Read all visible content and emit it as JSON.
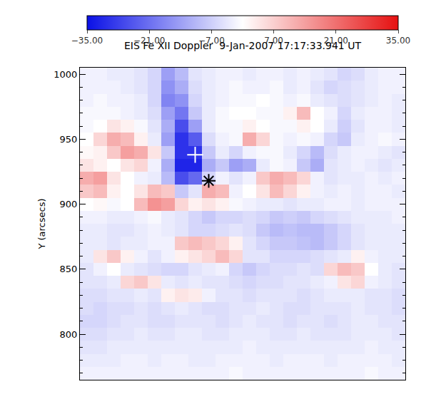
{
  "chart_data": {
    "type": "heatmap",
    "title": "EIS Fe XII Doppler  9-Jan-2007 17:17:33.941 UT",
    "y_label": "Y (arcsecs)",
    "ylim": [
      765,
      1005
    ],
    "yticks": [
      800,
      850,
      900,
      950,
      1000
    ],
    "tick_labels": "y",
    "colorbar": {
      "range": [
        -35,
        35
      ],
      "ticks": [
        {
          "value": -35,
          "label": "−35.00"
        },
        {
          "value": -21,
          "label": "−21.00"
        },
        {
          "value": -7,
          "label": "−7.00"
        },
        {
          "value": 7,
          "label": "7.00"
        },
        {
          "value": 21,
          "label": "21.00"
        },
        {
          "value": 35,
          "label": "35.00"
        }
      ]
    },
    "y": [
      1000,
      990,
      980,
      970,
      960,
      950,
      940,
      930,
      920,
      910,
      900,
      890,
      880,
      870,
      860,
      850,
      840,
      830,
      820,
      810,
      800,
      790,
      780,
      770
    ],
    "cells": [
      [
        -2,
        -2,
        -3,
        -3,
        -4,
        -6,
        -14,
        -10,
        -4,
        -3,
        -2,
        -2,
        -3,
        -2,
        -2,
        -3,
        -2,
        -3,
        -4,
        -6,
        -5,
        -3,
        -2,
        -2
      ],
      [
        -2,
        -2,
        -2,
        -3,
        -4,
        -6,
        -16,
        -12,
        -5,
        -3,
        -2,
        -1,
        -2,
        -2,
        -1,
        -3,
        -2,
        -4,
        -6,
        -5,
        -4,
        -3,
        -2,
        -2
      ],
      [
        -2,
        -1,
        -2,
        -2,
        -3,
        -6,
        -18,
        -16,
        -6,
        -3,
        -2,
        -1,
        -1,
        0,
        -1,
        -2,
        -1,
        -3,
        -4,
        -5,
        -4,
        -3,
        -2,
        -3
      ],
      [
        -1,
        -1,
        -1,
        -2,
        -3,
        -5,
        -14,
        -20,
        -8,
        -3,
        -1,
        0,
        0,
        -1,
        -1,
        2,
        10,
        0,
        -2,
        -6,
        -3,
        -2,
        -2,
        -3
      ],
      [
        -1,
        0,
        4,
        2,
        -1,
        -4,
        -12,
        -26,
        -14,
        -3,
        -1,
        -1,
        2,
        0,
        -1,
        -1,
        2,
        0,
        -3,
        -7,
        -4,
        -2,
        -2,
        -3
      ],
      [
        0,
        6,
        12,
        10,
        2,
        -3,
        -14,
        -30,
        -24,
        -5,
        -2,
        -1,
        12,
        6,
        -1,
        -2,
        -1,
        -2,
        -6,
        -8,
        -3,
        -2,
        -1,
        -2
      ],
      [
        1,
        2,
        8,
        14,
        12,
        4,
        -8,
        -30,
        -30,
        -8,
        -3,
        -6,
        -2,
        -1,
        -1,
        -3,
        -6,
        -10,
        -5,
        -3,
        -2,
        -2,
        -3,
        -4
      ],
      [
        4,
        2,
        0,
        4,
        6,
        -2,
        -12,
        -32,
        -32,
        -12,
        -8,
        -14,
        -12,
        -3,
        -1,
        -2,
        -8,
        -12,
        -4,
        -3,
        -2,
        -3,
        -4,
        -3
      ],
      [
        12,
        14,
        4,
        0,
        -2,
        -3,
        -10,
        -26,
        -22,
        -6,
        -2,
        -4,
        -2,
        8,
        12,
        10,
        6,
        -2,
        -4,
        -3,
        -3,
        -2,
        -3,
        -2
      ],
      [
        8,
        10,
        2,
        0,
        4,
        10,
        8,
        -8,
        -4,
        12,
        10,
        -2,
        0,
        4,
        10,
        6,
        2,
        -2,
        -3,
        -2,
        -3,
        -2,
        -2,
        -3
      ],
      [
        0,
        1,
        -1,
        0,
        10,
        16,
        14,
        6,
        2,
        4,
        2,
        -1,
        -2,
        -3,
        -3,
        -4,
        -3,
        -3,
        -2,
        -2,
        -3,
        -2,
        -2,
        -2
      ],
      [
        -2,
        -2,
        -3,
        -3,
        -2,
        -1,
        -3,
        -4,
        -6,
        -8,
        -6,
        -6,
        -5,
        -6,
        -8,
        -7,
        -8,
        -6,
        -5,
        -4,
        -3,
        -3,
        -3,
        -2
      ],
      [
        -3,
        -3,
        -4,
        -4,
        -3,
        -2,
        -3,
        -4,
        -6,
        -6,
        -5,
        -4,
        -5,
        -8,
        -10,
        -9,
        -10,
        -10,
        -8,
        -6,
        -4,
        -3,
        -3,
        -3
      ],
      [
        -3,
        -3,
        -4,
        -3,
        -3,
        -2,
        -2,
        8,
        10,
        8,
        6,
        2,
        -4,
        -6,
        -8,
        -8,
        -9,
        -10,
        -8,
        -6,
        -4,
        -3,
        -3,
        -3
      ],
      [
        -3,
        4,
        8,
        2,
        -2,
        -4,
        -2,
        2,
        4,
        6,
        10,
        6,
        -4,
        -4,
        -6,
        -6,
        -6,
        -5,
        -4,
        -3,
        2,
        -2,
        -3,
        -3
      ],
      [
        -4,
        -2,
        0,
        -3,
        -4,
        -5,
        -6,
        -6,
        -4,
        -3,
        -2,
        -6,
        -8,
        -6,
        -5,
        -5,
        -4,
        -5,
        6,
        10,
        8,
        0,
        -3,
        -4
      ],
      [
        -4,
        -4,
        -3,
        6,
        8,
        4,
        -3,
        -4,
        -3,
        -4,
        -4,
        -5,
        -6,
        -5,
        -5,
        -4,
        -4,
        -3,
        -2,
        4,
        6,
        -2,
        -3,
        -4
      ],
      [
        -5,
        -5,
        -4,
        -4,
        -3,
        -4,
        2,
        4,
        3,
        -2,
        -4,
        -4,
        -5,
        -4,
        -4,
        -4,
        -5,
        -4,
        -3,
        -3,
        -3,
        -4,
        -4,
        -5
      ],
      [
        -5,
        -6,
        -5,
        -5,
        -4,
        -5,
        -4,
        -3,
        -4,
        -5,
        -5,
        -4,
        -4,
        -3,
        -4,
        -5,
        -5,
        -4,
        -4,
        -4,
        -3,
        -4,
        -4,
        -5
      ],
      [
        -6,
        -6,
        -5,
        -4,
        -4,
        -5,
        -5,
        -4,
        -4,
        -4,
        -5,
        -4,
        -3,
        -4,
        -4,
        -5,
        -4,
        -4,
        -5,
        -4,
        -3,
        -3,
        -4,
        -4
      ],
      [
        -5,
        -5,
        -4,
        -4,
        -3,
        -4,
        -4,
        -3,
        -3,
        -4,
        -4,
        -3,
        -3,
        -3,
        -4,
        -4,
        -3,
        -4,
        -4,
        -4,
        -3,
        -3,
        -3,
        -4
      ],
      [
        -4,
        -4,
        -3,
        -3,
        -3,
        -3,
        -3,
        -3,
        -3,
        -3,
        -3,
        -3,
        -2,
        -3,
        -3,
        -3,
        -3,
        -3,
        -3,
        -3,
        -3,
        -2,
        -3,
        -3
      ],
      [
        -3,
        -3,
        -3,
        -2,
        -2,
        -3,
        -2,
        -2,
        -3,
        -3,
        -2,
        -2,
        -2,
        -2,
        -3,
        -2,
        -2,
        -2,
        -3,
        -2,
        -2,
        -2,
        -2,
        -3
      ],
      [
        -2,
        -2,
        -2,
        -2,
        -2,
        -2,
        -2,
        -2,
        -2,
        -2,
        -2,
        -1,
        -2,
        -2,
        -2,
        -2,
        -2,
        -2,
        -2,
        -2,
        -2,
        -1,
        -2,
        -2
      ]
    ],
    "markers": [
      {
        "x": 8,
        "y": 938,
        "color": "white",
        "marker": "plus"
      },
      {
        "x": 9,
        "y": 918,
        "color": "black",
        "marker": "asterisk"
      }
    ]
  }
}
